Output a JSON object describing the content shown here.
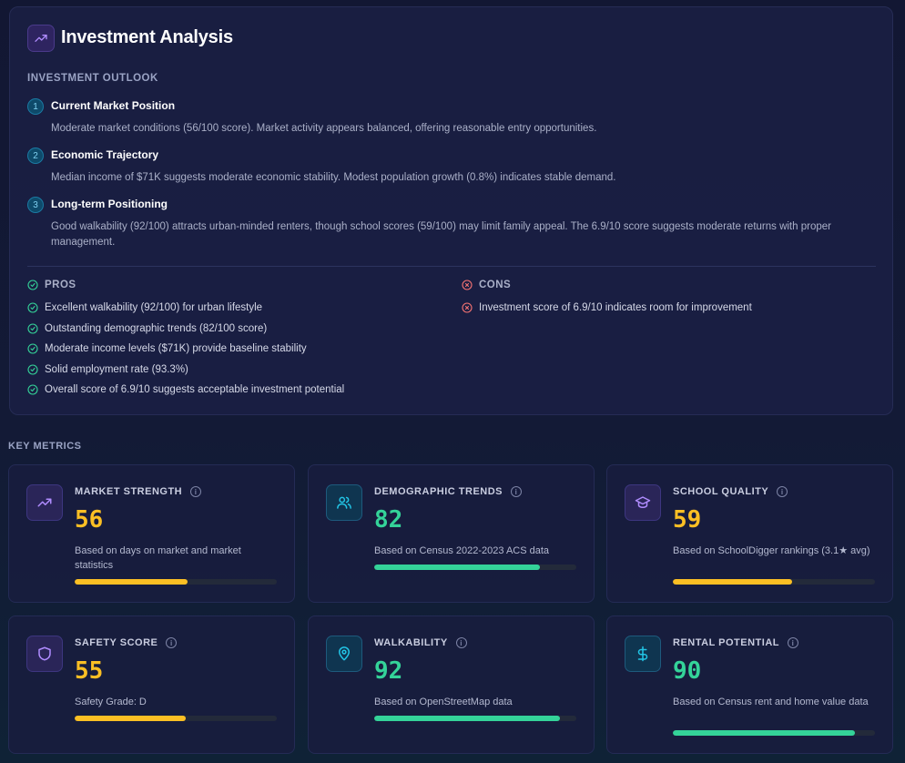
{
  "header": {
    "title": "Investment Analysis"
  },
  "outlook": {
    "title": "INVESTMENT OUTLOOK",
    "steps": [
      {
        "num": "1",
        "title": "Current Market Position",
        "desc": "Moderate market conditions (56/100 score). Market activity appears balanced, offering reasonable entry opportunities."
      },
      {
        "num": "2",
        "title": "Economic Trajectory",
        "desc": "Median income of $71K suggests moderate economic stability. Modest population growth (0.8%) indicates stable demand."
      },
      {
        "num": "3",
        "title": "Long-term Positioning",
        "desc": "Good walkability (92/100) attracts urban-minded renters, though school scores (59/100) may limit family appeal. The 6.9/10 score suggests moderate returns with proper management."
      }
    ]
  },
  "pros": {
    "title": "PROS",
    "items": [
      "Excellent walkability (92/100) for urban lifestyle",
      "Outstanding demographic trends (82/100 score)",
      "Moderate income levels ($71K) provide baseline stability",
      "Solid employment rate (93.3%)",
      "Overall score of 6.9/10 suggests acceptable investment potential"
    ]
  },
  "cons": {
    "title": "CONS",
    "items": [
      "Investment score of 6.9/10 indicates room for improvement"
    ]
  },
  "key_metrics": {
    "title": "KEY METRICS",
    "items": [
      {
        "label": "MARKET STRENGTH",
        "value": "56",
        "desc": "Based on days on market and market statistics",
        "icon": "trending-up-icon",
        "progress": 0.56,
        "tone": "orange"
      },
      {
        "label": "DEMOGRAPHIC TRENDS",
        "value": "82",
        "desc": "Based on Census 2022-2023 ACS data",
        "icon": "users-icon",
        "progress": 0.82,
        "tone": "green"
      },
      {
        "label": "SCHOOL QUALITY",
        "value": "59",
        "desc": "Based on SchoolDigger rankings (3.1★ avg)",
        "icon": "graduation-cap-icon",
        "progress": 0.59,
        "tone": "orange"
      },
      {
        "label": "SAFETY SCORE",
        "value": "55",
        "desc": "Safety Grade: D",
        "icon": "shield-icon",
        "progress": 0.55,
        "tone": "orange"
      },
      {
        "label": "WALKABILITY",
        "value": "92",
        "desc": "Based on OpenStreetMap data",
        "icon": "map-pin-icon",
        "progress": 0.92,
        "tone": "green"
      },
      {
        "label": "RENTAL POTENTIAL",
        "value": "90",
        "desc": "Based on Census rent and home value data",
        "icon": "dollar-icon",
        "progress": 0.9,
        "tone": "green"
      }
    ]
  },
  "colors": {
    "accent_purple": "#8b6cf0",
    "orange": "#fbbf24",
    "green": "#34d399",
    "cyan": "#22c5e6",
    "pro_green": "#34d399",
    "con_red": "#f47272"
  }
}
